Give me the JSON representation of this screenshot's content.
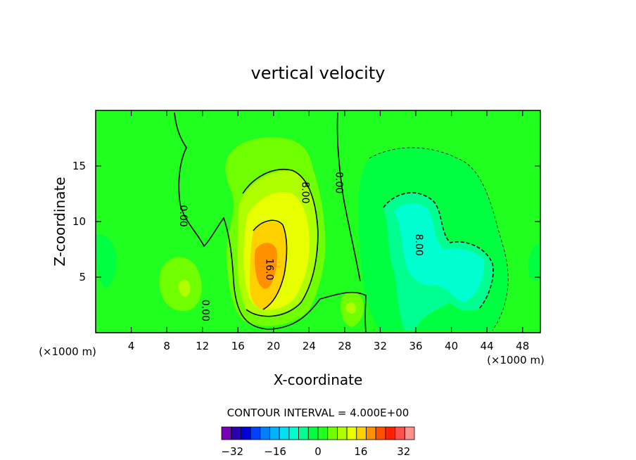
{
  "chart_data": {
    "type": "heatmap",
    "title": "vertical velocity",
    "xlabel": "X-coordinate",
    "ylabel": "Z-coordinate",
    "x_unit_label": "(×1000 m)",
    "x_unit_label_right": "(×1000 m)",
    "xlim": [
      0,
      50
    ],
    "ylim": [
      0,
      20
    ],
    "x_ticks": [
      4,
      8,
      12,
      16,
      20,
      24,
      28,
      32,
      36,
      40,
      44,
      48
    ],
    "y_ticks": [
      5,
      10,
      15
    ],
    "contour_interval_text": "CONTOUR INTERVAL = 4.000E+00",
    "contour_interval": 4,
    "contour_labels": [
      {
        "text": "0.00",
        "x": 9.5,
        "y": 10.5
      },
      {
        "text": "0.00",
        "x": 12.0,
        "y": 2.0
      },
      {
        "text": "8.00",
        "x": 23.2,
        "y": 12.6
      },
      {
        "text": "16.0",
        "x": 19.2,
        "y": 5.7
      },
      {
        "text": "0.00",
        "x": 27.0,
        "y": 13.5
      },
      {
        "text": "8.00",
        "x": 36.0,
        "y": 7.9
      }
    ],
    "features": [
      {
        "kind": "updraft",
        "cx": 19,
        "cy": 6,
        "peak": 20
      },
      {
        "kind": "updraft",
        "cx": 9.6,
        "cy": 4.2,
        "peak": 9
      },
      {
        "kind": "updraft",
        "cx": 28.5,
        "cy": 2.2,
        "peak": 6
      },
      {
        "kind": "downdraft",
        "cx": 37,
        "cy": 8,
        "peak": -10
      }
    ],
    "colorbar": {
      "min": -36,
      "max": 36,
      "step": 4,
      "tick_labels": [
        "-32",
        "-16",
        "0",
        "16",
        "32"
      ],
      "tick_values": [
        -32,
        -16,
        0,
        16,
        32
      ],
      "colors": [
        "#7a00b8",
        "#2a00b0",
        "#0000d8",
        "#0040ff",
        "#0080ff",
        "#00b0ff",
        "#00e0f0",
        "#00ffd0",
        "#00ff90",
        "#00ff40",
        "#20ff20",
        "#70ff00",
        "#b0ff00",
        "#e8ff00",
        "#ffd000",
        "#ff9000",
        "#ff5000",
        "#ff2000",
        "#ff5050",
        "#ff9090"
      ]
    }
  }
}
